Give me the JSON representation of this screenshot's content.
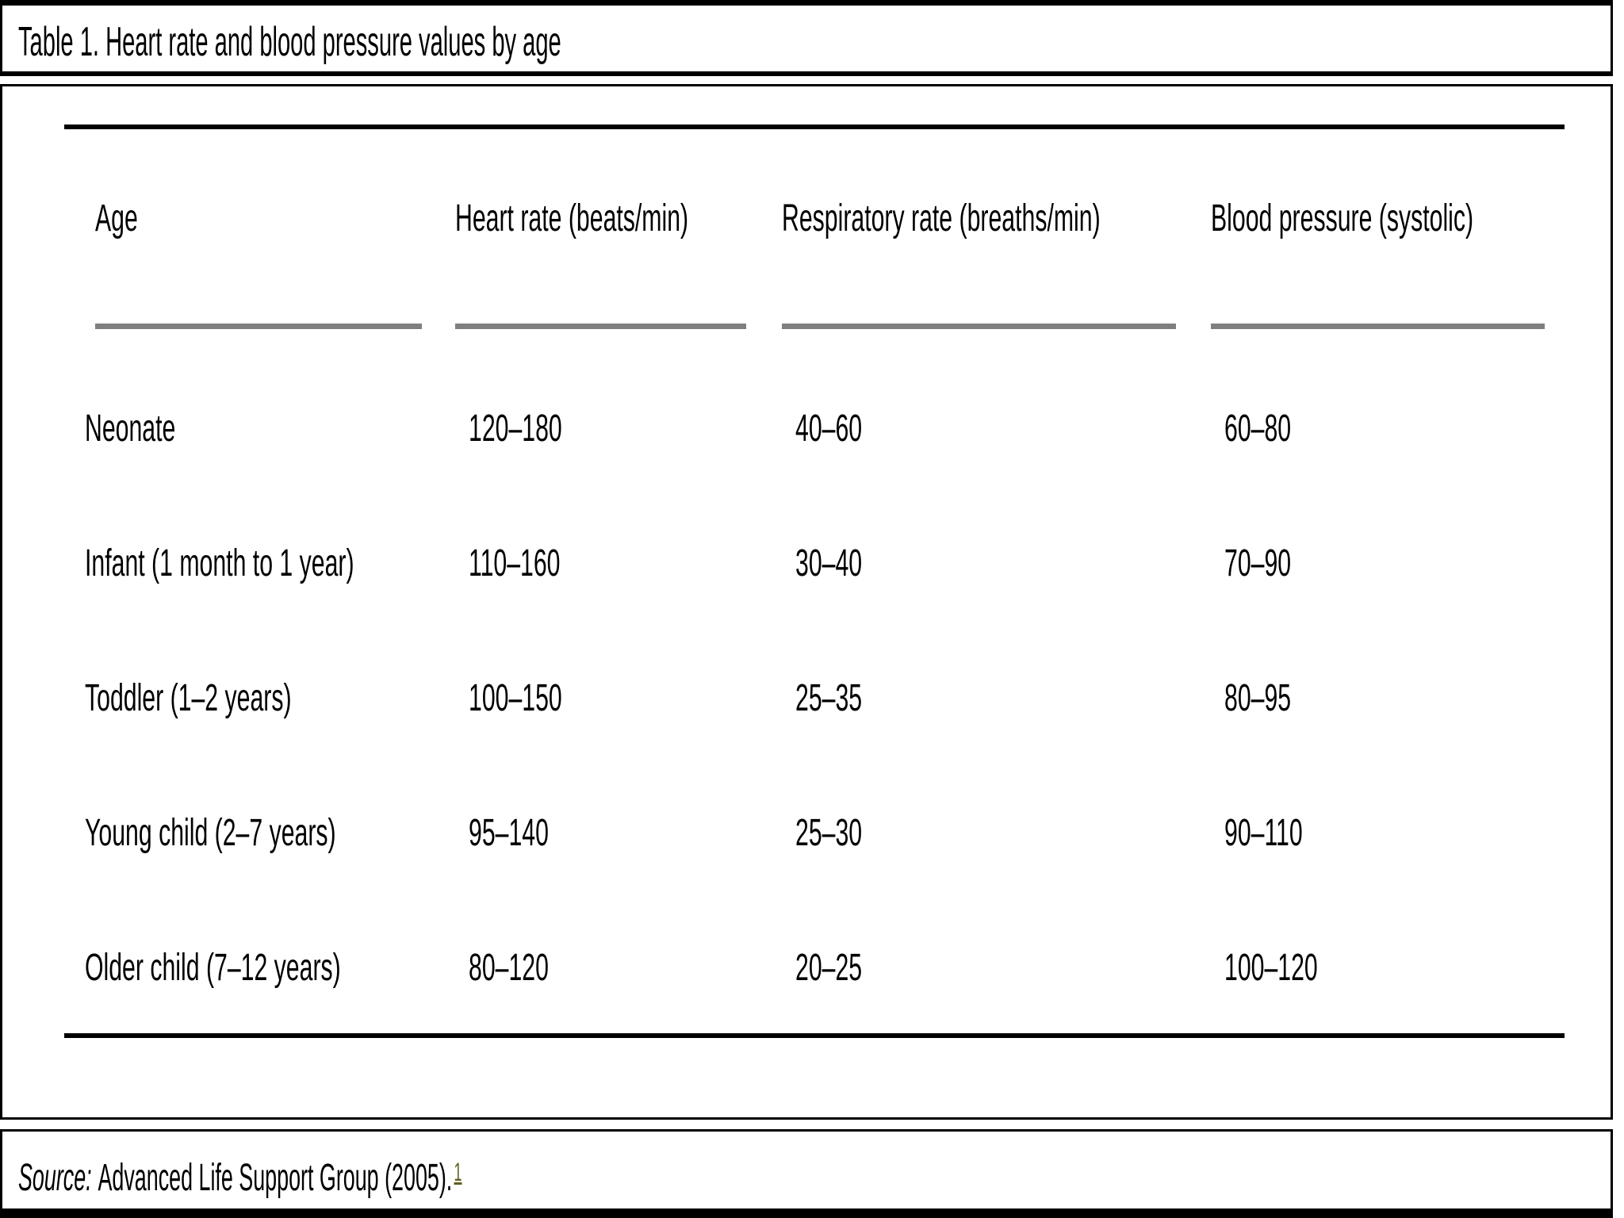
{
  "window": {
    "title": "Table 1. Heart rate and blood pressure values by age"
  },
  "table": {
    "headers": [
      "Age",
      "Heart rate (beats/min)",
      "Respiratory rate (breaths/min)",
      "Blood pressure (systolic)"
    ],
    "rows": [
      [
        "Neonate",
        "120–180",
        "40–60",
        "60–80"
      ],
      [
        "Infant (1 month to 1 year)",
        "110–160",
        "30–40",
        "70–90"
      ],
      [
        "Toddler (1–2 years)",
        "100–150",
        "25–35",
        "80–95"
      ],
      [
        "Young child (2–7 years)",
        "95–140",
        "25–30",
        "90–110"
      ],
      [
        "Older child (7–12 years)",
        "80–120",
        "20–25",
        "100–120"
      ]
    ]
  },
  "source": {
    "label": "Source:",
    "text": "Advanced Life Support Group (2005).",
    "footnote": "1"
  },
  "colors": {
    "text": "#000000",
    "rule": "#000000",
    "header_underline": "#7f7f7f",
    "footnote_link": "#5f5f1f"
  }
}
